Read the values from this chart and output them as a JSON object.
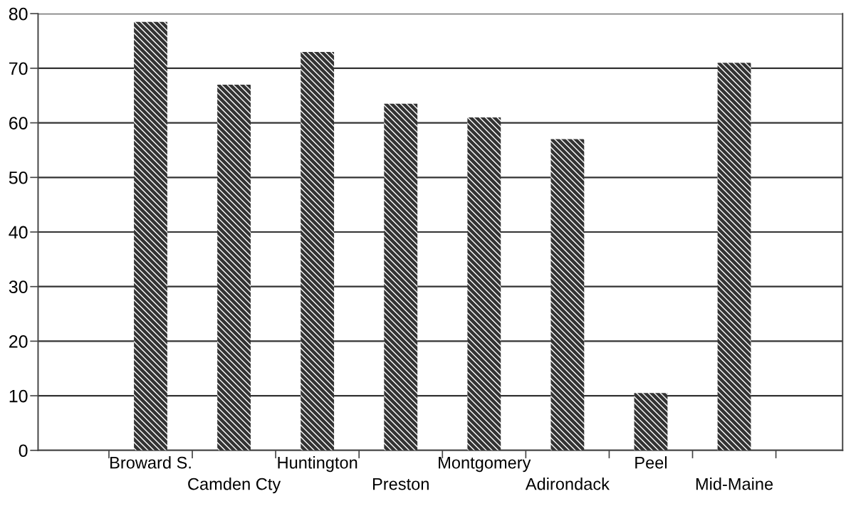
{
  "chart_data": {
    "type": "bar",
    "categories": [
      "Broward S.",
      "Camden Cty",
      "Huntington",
      "Preston",
      "Montgomery",
      "Adirondack",
      "Peel",
      "Mid-Maine"
    ],
    "values": [
      78.5,
      67,
      73,
      63.5,
      61,
      57,
      10.5,
      71
    ],
    "color": "#333333",
    "ylim": [
      0,
      80
    ],
    "yticks": [
      0,
      10,
      20,
      30,
      40,
      50,
      60,
      70,
      80
    ],
    "grid": "y"
  }
}
